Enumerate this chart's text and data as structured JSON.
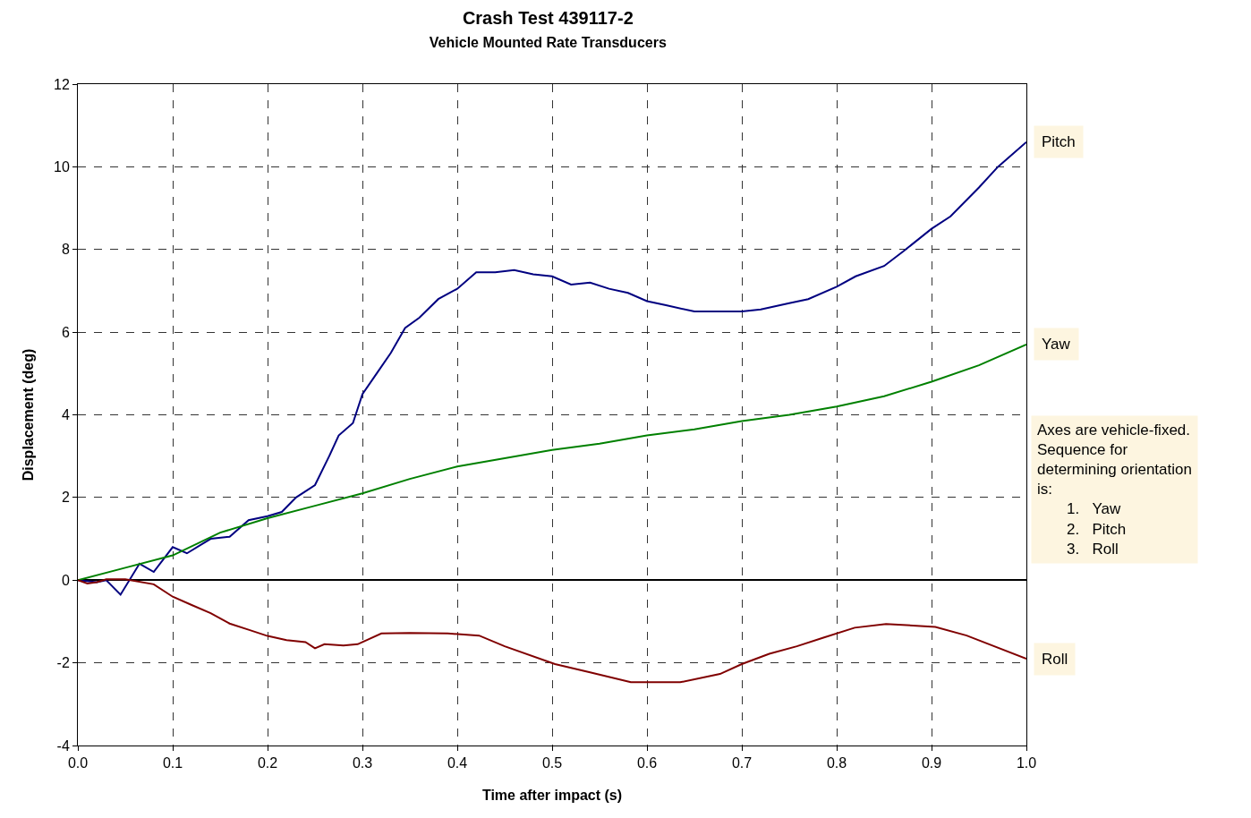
{
  "chart_data": {
    "type": "line",
    "title": "Crash Test 439117-2",
    "subtitle": "Vehicle Mounted Rate Transducers",
    "xlabel": "Time after impact (s)",
    "ylabel": "Displacement (deg)",
    "xlim": [
      0,
      1
    ],
    "xticks": [
      {
        "value": 0,
        "label": "0.0"
      },
      0.1,
      0.2,
      0.3,
      0.4,
      0.5,
      0.6,
      0.7,
      0.8,
      0.9,
      {
        "value": 1,
        "label": "1.0"
      }
    ],
    "ylim": [
      -4,
      12
    ],
    "yticks": [
      -4,
      -2,
      0,
      2,
      4,
      6,
      8,
      10,
      12
    ],
    "grid": true,
    "line_style": "solid",
    "marker": "none",
    "series": [
      {
        "name": "Pitch",
        "color": "#000080",
        "x": [
          0,
          0.02,
          0.03,
          0.045,
          0.065,
          0.08,
          0.1,
          0.115,
          0.14,
          0.16,
          0.18,
          0.2,
          0.215,
          0.23,
          0.25,
          0.265,
          0.275,
          0.29,
          0.3,
          0.315,
          0.33,
          0.345,
          0.36,
          0.38,
          0.4,
          0.42,
          0.44,
          0.46,
          0.48,
          0.5,
          0.52,
          0.54,
          0.56,
          0.58,
          0.6,
          0.62,
          0.65,
          0.7,
          0.72,
          0.75,
          0.77,
          0.8,
          0.82,
          0.85,
          0.87,
          0.9,
          0.92,
          0.95,
          0.97,
          1.0
        ],
        "values": [
          0,
          -0.05,
          0.0,
          -0.35,
          0.4,
          0.2,
          0.8,
          0.65,
          1.0,
          1.05,
          1.45,
          1.55,
          1.65,
          2.0,
          2.3,
          3.0,
          3.5,
          3.8,
          4.5,
          5.0,
          5.5,
          6.1,
          6.35,
          6.8,
          7.05,
          7.45,
          7.45,
          7.5,
          7.4,
          7.35,
          7.15,
          7.2,
          7.05,
          6.95,
          6.75,
          6.65,
          6.5,
          6.5,
          6.55,
          6.7,
          6.8,
          7.1,
          7.35,
          7.6,
          7.95,
          8.5,
          8.8,
          9.5,
          10.0,
          10.6
        ]
      },
      {
        "name": "Yaw",
        "color": "#008000",
        "x": [
          0,
          0.05,
          0.1,
          0.15,
          0.2,
          0.25,
          0.3,
          0.35,
          0.4,
          0.45,
          0.5,
          0.55,
          0.6,
          0.65,
          0.7,
          0.75,
          0.8,
          0.85,
          0.9,
          0.95,
          1.0
        ],
        "values": [
          0,
          0.3,
          0.6,
          1.15,
          1.5,
          1.8,
          2.1,
          2.45,
          2.75,
          2.95,
          3.15,
          3.3,
          3.5,
          3.65,
          3.85,
          4.0,
          4.2,
          4.45,
          4.8,
          5.2,
          5.7
        ]
      },
      {
        "name": "Roll",
        "color": "#800000",
        "x": [
          0,
          0.01,
          0.02,
          0.03,
          0.05,
          0.08,
          0.1,
          0.12,
          0.14,
          0.16,
          0.18,
          0.2,
          0.22,
          0.24,
          0.25,
          0.26,
          0.28,
          0.295,
          0.32,
          0.35,
          0.39,
          0.423,
          0.45,
          0.503,
          0.54,
          0.583,
          0.635,
          0.677,
          0.7,
          0.729,
          0.758,
          0.786,
          0.819,
          0.852,
          0.904,
          0.937,
          1.0
        ],
        "values": [
          0,
          -0.08,
          -0.05,
          0.02,
          0.02,
          -0.1,
          -0.4,
          -0.6,
          -0.8,
          -1.05,
          -1.2,
          -1.35,
          -1.45,
          -1.5,
          -1.65,
          -1.55,
          -1.58,
          -1.55,
          -1.29,
          -1.28,
          -1.29,
          -1.34,
          -1.6,
          -2.03,
          -2.23,
          -2.47,
          -2.47,
          -2.27,
          -2.03,
          -1.78,
          -1.6,
          -1.39,
          -1.15,
          -1.06,
          -1.13,
          -1.34,
          -1.9
        ]
      }
    ],
    "annotations": [
      "Axes are vehicle-fixed.\nSequence for\ndetermining orientation\nis:\n1.  Yaw\n2.  Pitch\n3.  Roll"
    ]
  }
}
